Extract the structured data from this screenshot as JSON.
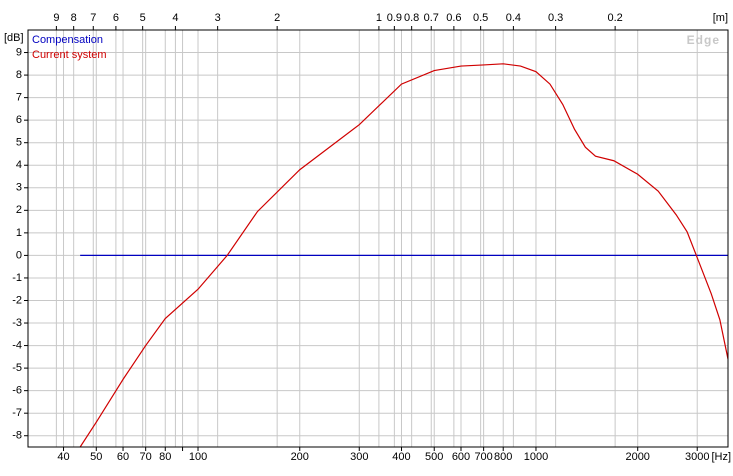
{
  "chart_data": {
    "type": "line",
    "x_unit": "[Hz]",
    "x2_unit": "[m]",
    "y_unit": "[dB]",
    "watermark": "Edge",
    "log_x": true,
    "grid": true,
    "legend": "top-left",
    "xlim": [
      31.4,
      3700
    ],
    "x2lim": [
      10.92,
      0.0927
    ],
    "ylim": [
      -8.5,
      10
    ],
    "xticks": [
      40,
      50,
      60,
      70,
      80,
      100,
      200,
      300,
      400,
      500,
      600,
      700,
      800,
      1000,
      2000,
      3000
    ],
    "xminor_ticks": [
      90
    ],
    "x2ticks": [
      9,
      8,
      7,
      6,
      5,
      4,
      3,
      2,
      1,
      0.9,
      0.8,
      0.7,
      0.6,
      0.5,
      0.4,
      0.3,
      0.2
    ],
    "yticks": [
      -8,
      -7,
      -6,
      -5,
      -4,
      -3,
      -2,
      -1,
      0,
      1,
      2,
      3,
      4,
      5,
      6,
      7,
      8,
      9
    ],
    "x": [
      44.8,
      50,
      60,
      70,
      80,
      100,
      122,
      150,
      200,
      300,
      400,
      500,
      600,
      700,
      800,
      900,
      1000,
      1100,
      1200,
      1300,
      1400,
      1500,
      1700,
      2000,
      2300,
      2600,
      2800,
      3000,
      3300,
      3500,
      3700
    ],
    "series": [
      {
        "name": "Compensation",
        "color": "#0000c0",
        "values": [
          0,
          0,
          0,
          0,
          0,
          0,
          0,
          0,
          0,
          0,
          0,
          0,
          0,
          0,
          0,
          0,
          0,
          0,
          0,
          0,
          0,
          0,
          0,
          0,
          0,
          0,
          0,
          0,
          0,
          0,
          0
        ]
      },
      {
        "name": "Current system",
        "color": "#d00000",
        "values": [
          -8.5,
          -7.4,
          -5.5,
          -4.0,
          -2.8,
          -1.5,
          0,
          1.95,
          3.8,
          5.8,
          7.6,
          8.2,
          8.4,
          8.45,
          8.5,
          8.4,
          8.15,
          7.6,
          6.7,
          5.6,
          4.8,
          4.4,
          4.2,
          3.6,
          2.85,
          1.8,
          1.05,
          -0.1,
          -1.7,
          -2.85,
          -4.6
        ]
      }
    ]
  }
}
